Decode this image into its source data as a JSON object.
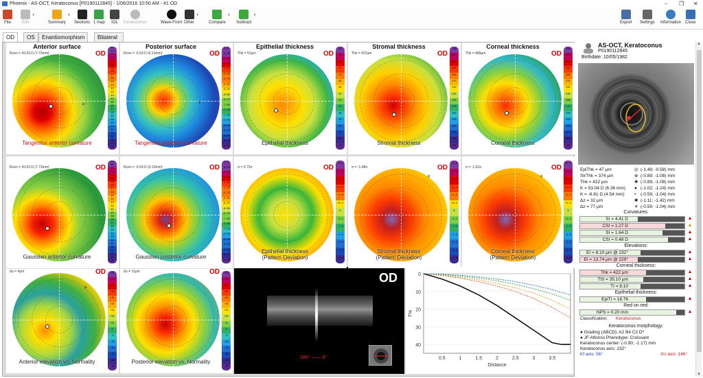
{
  "window": {
    "title": "Phoenix - AS-OCT, Keratoconus [P0190112845] - 1/06/2016 10:50 AM - #1 OD"
  },
  "toolbar": {
    "items": [
      {
        "label": "File",
        "icon": "file-icon",
        "color": "#c84a2a",
        "enabled": true
      },
      {
        "label": "Edit",
        "icon": "edit-icon",
        "color": "#bbbbbb",
        "enabled": false
      },
      {
        "label": "Summary",
        "icon": "summary-icon",
        "color": "#e8a81a",
        "enabled": true
      },
      {
        "label": "Sections",
        "icon": "sections-icon",
        "color": "#222222",
        "enabled": true
      },
      {
        "label": "1 map",
        "icon": "one-map-icon",
        "color": "#3aa04a",
        "enabled": true
      },
      {
        "label": "IOL",
        "icon": "iol-icon",
        "color": "#444444",
        "enabled": true
      },
      {
        "label": "Keratoconus",
        "icon": "keratoconus-icon",
        "color": "#bbbbbb",
        "enabled": false
      },
      {
        "label": "Wave-Front",
        "icon": "wavefront-icon",
        "color": "#111111",
        "enabled": true
      },
      {
        "label": "Other",
        "icon": "more-icon",
        "color": "#333333",
        "enabled": true
      },
      {
        "label": "Compare",
        "icon": "compare-icon",
        "color": "#3fa83f",
        "enabled": true
      },
      {
        "label": "Subtract",
        "icon": "subtract-icon",
        "color": "#3fa83f",
        "enabled": true
      }
    ],
    "right_items": [
      {
        "label": "Export",
        "icon": "export-icon",
        "color": "#4a6fa8"
      },
      {
        "label": "Settings",
        "icon": "settings-icon",
        "color": "#666666"
      },
      {
        "label": "Information",
        "icon": "information-icon",
        "color": "#3a7cc0"
      },
      {
        "label": "Close",
        "icon": "close-icon",
        "color": "#3a6fb8"
      }
    ]
  },
  "tabs": [
    "OD",
    "OS",
    "Enantiomorphism",
    "Bilateral summary"
  ],
  "maps": [
    {
      "title": "Anterior surface",
      "od": "OD",
      "info": "Rcen = 43.63 D (7.73mm)",
      "caption": [
        "Tangential anterior curvature"
      ],
      "caption_color": "red",
      "palette": "curv_ant"
    },
    {
      "title": "Posterior surface",
      "od": "OD",
      "info": "Rcen = -6.53 D (6.13mm)",
      "caption": [
        "Tangential posterior curvature"
      ],
      "caption_color": "red",
      "palette": "curv_post"
    },
    {
      "title": "Epithelial thickness",
      "od": "OD",
      "info": "Thk = 52µm",
      "caption": [
        "Epithelial thickness"
      ],
      "caption_color": "dark",
      "palette": "epi"
    },
    {
      "title": "Stromal thickness",
      "od": "OD",
      "info": "Thk = 437µm",
      "caption": [
        "Stromal thickness"
      ],
      "caption_color": "dark",
      "palette": "stroma"
    },
    {
      "title": "Corneal thickness",
      "od": "OD",
      "info": "Thk = 489µm",
      "caption": [
        "Corneal thickness"
      ],
      "caption_color": "dark",
      "palette": "corneal"
    },
    {
      "title": "",
      "od": "OD",
      "info": "Rcen = 43.63 D (7.73mm)",
      "caption": [
        "Gaussian anterior curvature"
      ],
      "caption_color": "dark",
      "palette": "gauss_ant"
    },
    {
      "title": "",
      "od": "OD",
      "info": "Rcen = -6.53 D (6.13mm)",
      "caption": [
        "Gaussian posterior curvature"
      ],
      "caption_color": "dark",
      "palette": "gauss_post"
    },
    {
      "title": "",
      "od": "OD",
      "info": "σ = 3.72σ",
      "caption": [
        "Epithelial thickness",
        "(Pattern Deviation)"
      ],
      "caption_color": "dark",
      "palette": "epi_pd"
    },
    {
      "title": "",
      "od": "OD",
      "info": "σ = -1.48σ",
      "caption": [
        "Stromal thickness",
        "(Pattern Deviation)"
      ],
      "caption_color": "dark",
      "palette": "stroma_pd"
    },
    {
      "title": "",
      "od": "OD",
      "info": "σ = -1.52σ",
      "caption": [
        "Corneal thickness",
        "(Pattern Deviation)"
      ],
      "caption_color": "dark",
      "palette": "corneal_pd"
    },
    {
      "title": "",
      "od": "OD",
      "info": "Δz = 4µm",
      "caption": [
        "Anterior elevation vs. Normality"
      ],
      "caption_color": "dark",
      "palette": "elev_ant"
    },
    {
      "title": "",
      "od": "OD",
      "info": "Δz = 11µm",
      "caption": [
        "Posterior elevation vs. Normality"
      ],
      "caption_color": "dark",
      "palette": "elev_post"
    }
  ],
  "scales": {
    "curv_ant": [
      "55",
      "54",
      "53",
      "52",
      "51",
      "50",
      "49",
      "48",
      "47",
      "46",
      "45",
      "44",
      "43",
      "42",
      "41",
      "40",
      "39",
      "38",
      "37",
      "36",
      "35",
      "34",
      "33",
      "32",
      "31",
      "30",
      "29",
      "28",
      "27",
      "26"
    ],
    "curv_post": [
      "-4.25",
      "-4.50",
      "-4.75",
      "-5.00",
      "-5.25",
      "-5.50",
      "-5.75",
      "-6.00",
      "-6.25",
      "-6.50",
      "-6.75",
      "-7.00",
      "-7.25",
      "-7.50",
      "-7.75",
      "-8.00",
      "-8.25",
      "-8.50",
      "-8.75",
      "-9.00"
    ],
    "thick_epi": [
      "90",
      "85",
      "80",
      "75",
      "70",
      "65",
      "60",
      "55",
      "50",
      "45",
      "40",
      "35",
      "30",
      "25",
      "20",
      "15"
    ],
    "thick_str": [
      "700",
      "675",
      "650",
      "625",
      "600",
      "575",
      "550",
      "525",
      "500",
      "475",
      "450",
      "425",
      "400",
      "375",
      "350",
      "325"
    ],
    "pd": [
      "+3.0",
      "+2.5",
      "+2.0",
      "+1.5",
      "+1.0",
      "+0.5",
      "0",
      "-0.5",
      "-1.0",
      "-1.5",
      "-2.0",
      "-2.5",
      "-3.0"
    ],
    "elev": [
      "+45",
      "+40",
      "+35",
      "+30",
      "+25",
      "+20",
      "+15",
      "+10",
      "+5",
      "0",
      "-5",
      "-10",
      "-15",
      "-20",
      "-25",
      "-30"
    ]
  },
  "oct": {
    "label": "OD",
    "deg": "180° —— 0°"
  },
  "chart_data": {
    "type": "line",
    "title": "",
    "xlabel": "Distance",
    "ylabel": "T%",
    "xlim": [
      0,
      4.0
    ],
    "ylim": [
      45,
      0
    ],
    "xticks": [
      0.5,
      1,
      1.5,
      2,
      2.5,
      3,
      3.5
    ],
    "yticks": [
      0,
      10,
      20,
      30,
      40
    ],
    "series": [
      {
        "color": "#111111",
        "x": [
          0,
          0.5,
          1,
          1.5,
          2,
          2.5,
          3,
          3.5,
          3.75,
          4.0
        ],
        "y": [
          0,
          3,
          7,
          12,
          18,
          25,
          32,
          39,
          40,
          40
        ]
      },
      {
        "color": "#e05020",
        "x": [
          0,
          0.5,
          1,
          1.5,
          2,
          2.5,
          3,
          3.5,
          4.0
        ],
        "y": [
          0,
          1,
          2.5,
          4.5,
          7,
          10,
          14,
          19,
          25
        ]
      },
      {
        "color": "#f0a020",
        "x": [
          0,
          0.5,
          1,
          1.5,
          2,
          2.5,
          3,
          3.5,
          4.0
        ],
        "y": [
          0,
          0.8,
          2,
          3.5,
          5.5,
          8,
          11,
          15,
          20
        ]
      },
      {
        "color": "#2aa040",
        "x": [
          0,
          0.5,
          1,
          1.5,
          2,
          2.5,
          3,
          3.5,
          4.0
        ],
        "y": [
          0,
          0.5,
          1.3,
          2.5,
          4,
          6,
          8.5,
          11.5,
          15
        ]
      },
      {
        "color": "#2070c0",
        "x": [
          0,
          0.5,
          1,
          1.5,
          2,
          2.5,
          3,
          3.5,
          4.0
        ],
        "y": [
          0,
          0.3,
          0.9,
          1.8,
          3,
          4.5,
          6.5,
          9,
          12
        ]
      }
    ]
  },
  "patient": {
    "name": "AS-OCT, Keratoconus",
    "id": "P0190112845",
    "birthdate": "Birthdate: 10/05/1982"
  },
  "measurements": [
    {
      "left": "EpiThk = 47 µm",
      "right": "(-1.49; -0.58) mm"
    },
    {
      "left": "StrThk = 374 µm",
      "right": "(-0.89; -1.08) mm"
    },
    {
      "left": "Thk = 422 µm",
      "right": "(-0.89; -1.08) mm"
    },
    {
      "left": "K = 53.04 D (6.36 mm)",
      "right": "(-1.02; -1.24) mm"
    },
    {
      "left": "K = -8.81 D (4.54 mm)",
      "right": "(-0.59; -1.04) mm"
    },
    {
      "left": "Δz = 32 µm",
      "right": "(-1.11; -1.42) mm"
    },
    {
      "left": "Δz = 77 µm",
      "right": "(-0.59; -1.04) mm"
    }
  ],
  "sections": {
    "curvatures": "Curvatures:",
    "elevations": "Elevations:",
    "corneal_thickness": "Corneal thickness:",
    "epithelial_thickness": "Epithelial thickness:",
    "red_on_red": "Red on red:"
  },
  "bars": {
    "curv": [
      {
        "text": "SI = 4.41 D",
        "level": 0.85,
        "warn": "red",
        "bg": "green"
      },
      {
        "text": "CSI = 1.27 D",
        "level": 0.35,
        "warn": "yellow",
        "bg": "red"
      },
      {
        "text": "SI = 1.64 D",
        "level": 0.4,
        "warn": "red",
        "bg": "green"
      },
      {
        "text": "CSI = 0.48 D",
        "level": 0.3,
        "warn": "red",
        "bg": "green"
      }
    ],
    "elev": [
      {
        "text": "EI = 8.10 µm @ 232°",
        "level": 0.8,
        "warn": "red",
        "bg": "green"
      },
      {
        "text": "EI = 13.74 µm @ 229°",
        "level": 0.85,
        "warn": "red",
        "bg": "red"
      }
    ],
    "thick": [
      {
        "text": "Thk = 422 µm",
        "level": 0.7,
        "warn": "red",
        "bg": "red"
      },
      {
        "text": "TSI = 35.10 µm",
        "level": 0.75,
        "warn": "red",
        "bg": "green"
      },
      {
        "text": "TI = 8.10",
        "level": 0.8,
        "warn": "red",
        "bg": "green"
      }
    ],
    "epi": [
      {
        "text": "EpiTI = 18.76",
        "level": 0.7,
        "warn": "red",
        "bg": "green"
      }
    ],
    "ror": [
      {
        "text": "NPS = 0.20 mm",
        "level": 0.15,
        "warn": "red",
        "bg": "green"
      }
    ]
  },
  "classification": {
    "label": "Classification:",
    "value": "Keratoconus"
  },
  "morphology": {
    "header": "Keratoconus morphology:",
    "lines": [
      "● Grading (ABCD): A2 B4 C2 D*",
      "● JF Alfonso Phenotype: Croissant",
      "Keratoconus center:        (-0.90; -1.17) mm",
      "Keratoconus axis: 232°"
    ],
    "kf": "Kf axis: 56°",
    "ks": "Ks axis: 146°"
  }
}
